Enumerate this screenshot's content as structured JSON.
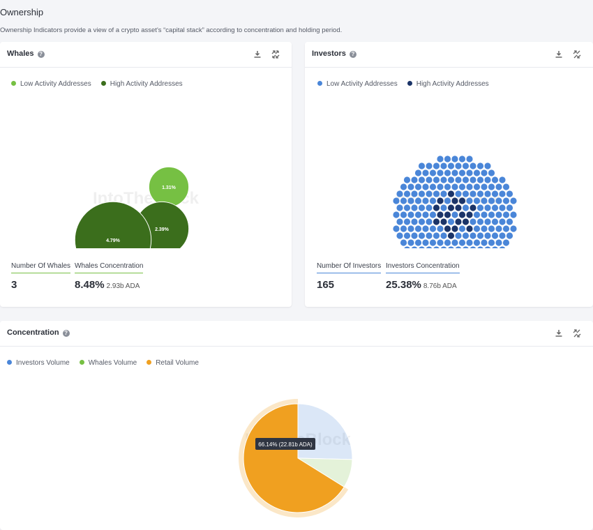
{
  "header": {
    "title": "Ownership",
    "subtitle": "Ownership Indicators provide a view of a crypto asset's “capital stack” according to concentration and holding period."
  },
  "watermark": "IntoTheBlock",
  "whales": {
    "title": "Whales",
    "legend": [
      {
        "name": "Low Activity Addresses",
        "color": "#76c043"
      },
      {
        "name": "High Activity Addresses",
        "color": "#3b6e1c"
      }
    ],
    "chart_data": {
      "type": "bubble",
      "values": [
        1.31,
        2.39,
        4.79
      ],
      "value_labels": [
        "1.31%",
        "2.39%",
        "4.79%"
      ],
      "groups": [
        0,
        1,
        1
      ]
    },
    "stats": [
      {
        "label": "Number Of Whales",
        "value": "3"
      },
      {
        "label": "Whales Concentration",
        "value": "8.48%",
        "sub": "2.93b ADA"
      }
    ]
  },
  "investors": {
    "title": "Investors",
    "legend": [
      {
        "name": "Low Activity Addresses",
        "color": "#4a86d8"
      },
      {
        "name": "High Activity Addresses",
        "color": "#1b3468"
      }
    ],
    "stats": [
      {
        "label": "Number Of Investors",
        "value": "165"
      },
      {
        "label": "Investors Concentration",
        "value": "25.38%",
        "sub": "8.76b ADA"
      }
    ]
  },
  "concentration": {
    "title": "Concentration",
    "chart_data": {
      "type": "pie",
      "categories": [
        "Investors Volume",
        "Whales Volume",
        "Retail Volume"
      ],
      "values": [
        25.38,
        8.48,
        66.14
      ],
      "colors": [
        "#4a86d8",
        "#76c043",
        "#f0a020"
      ],
      "highlighted": 2
    },
    "tooltip": "66.14% (22.81b ADA)"
  }
}
